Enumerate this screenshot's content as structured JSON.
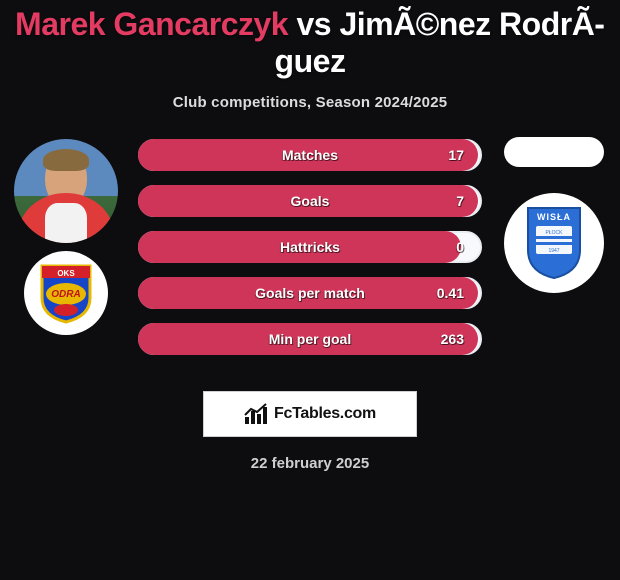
{
  "title": {
    "player1": "Marek Gancarczyk",
    "vs": "vs",
    "player2": "JimÃ©nez RodrÃ­guez"
  },
  "subtitle": "Club competitions, Season 2024/2025",
  "colors": {
    "player1_accent": "#e33b61",
    "bar_fill": "#ce3559",
    "bar_bg": "#f7f9fc",
    "bar_border": "#e9edf2",
    "page_bg": "#0d0d10",
    "text_light": "#ffffff"
  },
  "stats": {
    "rows": [
      {
        "label": "Matches",
        "value_text": "17",
        "fill_pct": 100
      },
      {
        "label": "Goals",
        "value_text": "7",
        "fill_pct": 100
      },
      {
        "label": "Hattricks",
        "value_text": "0",
        "fill_pct": 95
      },
      {
        "label": "Goals per match",
        "value_text": "0.41",
        "fill_pct": 100
      },
      {
        "label": "Min per goal",
        "value_text": "263",
        "fill_pct": 100
      }
    ]
  },
  "badges": {
    "left_photo_alt": "player-photo",
    "left_club_alt": "oks-odra-badge",
    "right_club_alt": "wisla-plock-badge",
    "odra_text_top": "OKS",
    "odra_text_mid": "ODRA",
    "wisla_text": "WISŁA"
  },
  "brand": {
    "text": "FcTables.com"
  },
  "date": "22 february 2025"
}
